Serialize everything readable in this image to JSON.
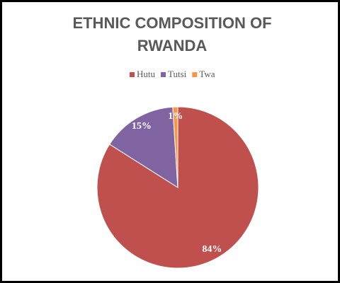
{
  "chart_data": {
    "type": "pie",
    "title": "ETHNIC COMPOSITION OF RWANDA",
    "categories": [
      "Hutu",
      "Tutsi",
      "Twa"
    ],
    "values": [
      84,
      15,
      1
    ],
    "value_labels": [
      "84%",
      "15%",
      "1%"
    ],
    "colors": [
      "#c0504d",
      "#8064a2",
      "#f79646"
    ],
    "legend": "top"
  }
}
